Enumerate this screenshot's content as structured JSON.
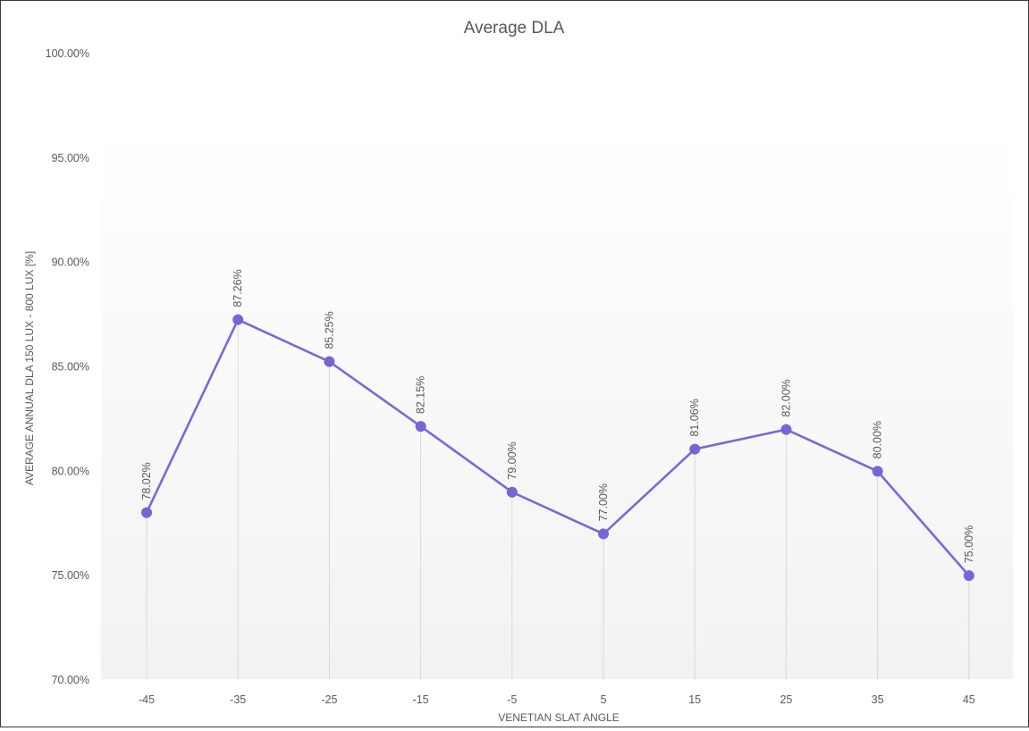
{
  "chart_data": {
    "type": "line",
    "title": "Average DLA",
    "xlabel": "VENETIAN SLAT ANGLE",
    "ylabel": "AVERAGE ANNUAL DLA  150 LUX - 800 LUX [%]",
    "categories": [
      "-45",
      "-35",
      "-25",
      "-15",
      "-5",
      "5",
      "15",
      "25",
      "35",
      "45"
    ],
    "values": [
      78.02,
      87.26,
      85.25,
      82.15,
      79.0,
      77.0,
      81.06,
      82.0,
      80.0,
      75.0
    ],
    "data_labels": [
      "78.02%",
      "87.26%",
      "85.25%",
      "82.15%",
      "79.00%",
      "77.00%",
      "81.06%",
      "82.00%",
      "80.00%",
      "75.00%"
    ],
    "ylim": [
      70,
      100
    ],
    "yticks": [
      70,
      75,
      80,
      85,
      90,
      95,
      100
    ],
    "ytick_labels": [
      "70.00%",
      "75.00%",
      "80.00%",
      "85.00%",
      "90.00%",
      "95.00%",
      "100.00%"
    ],
    "grid": false,
    "drop_lines": true,
    "legend": "none",
    "colors": {
      "line": "#7b68d8",
      "marker": "#7565d6",
      "text": "#595959",
      "title": "#595959",
      "drop_line": "#d9d9d9",
      "plot_bg_top": "#ffffff",
      "plot_bg_bottom": "#f2f2f2"
    }
  }
}
